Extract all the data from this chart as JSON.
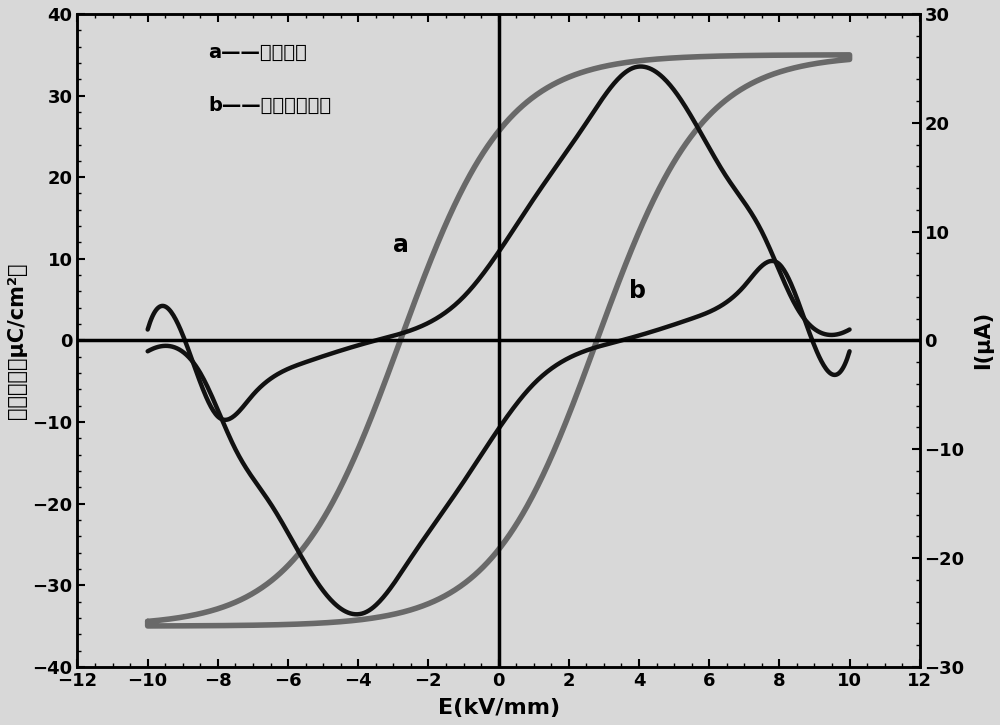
{
  "xlabel": "E(kV/mm)",
  "ylabel_left": "极化强度（μC/cm²）",
  "ylabel_right": "I(μA)",
  "xlim": [
    -12,
    12
  ],
  "ylim_left": [
    -40,
    40
  ],
  "ylim_right": [
    -30,
    30
  ],
  "xticks": [
    -12,
    -10,
    -8,
    -6,
    -4,
    -2,
    0,
    2,
    4,
    6,
    8,
    10,
    12
  ],
  "yticks_left": [
    -40,
    -30,
    -20,
    -10,
    0,
    10,
    20,
    30,
    40
  ],
  "yticks_right": [
    -30,
    -20,
    -10,
    0,
    10,
    20,
    30
  ],
  "legend_a": "a——电滴回线",
  "legend_b": "b——极化反转电流",
  "color_a": "#696969",
  "color_b": "#111111",
  "linewidth_a": 4.0,
  "linewidth_b": 3.2,
  "background_color": "#d8d8d8",
  "scale_I_to_P": 1.3333
}
